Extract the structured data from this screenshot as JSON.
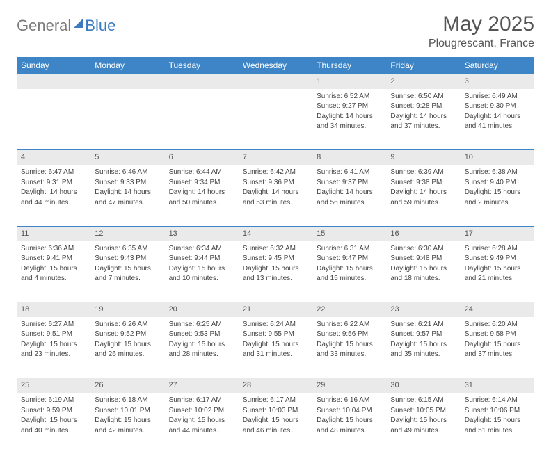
{
  "logo": {
    "general": "General",
    "blue": "Blue"
  },
  "title": "May 2025",
  "location": "Plougrescant, France",
  "colors": {
    "header_bg": "#3d85c6",
    "header_fg": "#ffffff",
    "daynum_bg": "#eaeaea",
    "border": "#3d85c6",
    "text": "#444444",
    "logo_gray": "#7a7a7a",
    "logo_blue": "#3a7bbf"
  },
  "weekdays": [
    "Sunday",
    "Monday",
    "Tuesday",
    "Wednesday",
    "Thursday",
    "Friday",
    "Saturday"
  ],
  "weeks": [
    {
      "nums": [
        "",
        "",
        "",
        "",
        "1",
        "2",
        "3"
      ],
      "cells": [
        null,
        null,
        null,
        null,
        {
          "sunrise": "Sunrise: 6:52 AM",
          "sunset": "Sunset: 9:27 PM",
          "day1": "Daylight: 14 hours",
          "day2": "and 34 minutes."
        },
        {
          "sunrise": "Sunrise: 6:50 AM",
          "sunset": "Sunset: 9:28 PM",
          "day1": "Daylight: 14 hours",
          "day2": "and 37 minutes."
        },
        {
          "sunrise": "Sunrise: 6:49 AM",
          "sunset": "Sunset: 9:30 PM",
          "day1": "Daylight: 14 hours",
          "day2": "and 41 minutes."
        }
      ]
    },
    {
      "nums": [
        "4",
        "5",
        "6",
        "7",
        "8",
        "9",
        "10"
      ],
      "cells": [
        {
          "sunrise": "Sunrise: 6:47 AM",
          "sunset": "Sunset: 9:31 PM",
          "day1": "Daylight: 14 hours",
          "day2": "and 44 minutes."
        },
        {
          "sunrise": "Sunrise: 6:46 AM",
          "sunset": "Sunset: 9:33 PM",
          "day1": "Daylight: 14 hours",
          "day2": "and 47 minutes."
        },
        {
          "sunrise": "Sunrise: 6:44 AM",
          "sunset": "Sunset: 9:34 PM",
          "day1": "Daylight: 14 hours",
          "day2": "and 50 minutes."
        },
        {
          "sunrise": "Sunrise: 6:42 AM",
          "sunset": "Sunset: 9:36 PM",
          "day1": "Daylight: 14 hours",
          "day2": "and 53 minutes."
        },
        {
          "sunrise": "Sunrise: 6:41 AM",
          "sunset": "Sunset: 9:37 PM",
          "day1": "Daylight: 14 hours",
          "day2": "and 56 minutes."
        },
        {
          "sunrise": "Sunrise: 6:39 AM",
          "sunset": "Sunset: 9:38 PM",
          "day1": "Daylight: 14 hours",
          "day2": "and 59 minutes."
        },
        {
          "sunrise": "Sunrise: 6:38 AM",
          "sunset": "Sunset: 9:40 PM",
          "day1": "Daylight: 15 hours",
          "day2": "and 2 minutes."
        }
      ]
    },
    {
      "nums": [
        "11",
        "12",
        "13",
        "14",
        "15",
        "16",
        "17"
      ],
      "cells": [
        {
          "sunrise": "Sunrise: 6:36 AM",
          "sunset": "Sunset: 9:41 PM",
          "day1": "Daylight: 15 hours",
          "day2": "and 4 minutes."
        },
        {
          "sunrise": "Sunrise: 6:35 AM",
          "sunset": "Sunset: 9:43 PM",
          "day1": "Daylight: 15 hours",
          "day2": "and 7 minutes."
        },
        {
          "sunrise": "Sunrise: 6:34 AM",
          "sunset": "Sunset: 9:44 PM",
          "day1": "Daylight: 15 hours",
          "day2": "and 10 minutes."
        },
        {
          "sunrise": "Sunrise: 6:32 AM",
          "sunset": "Sunset: 9:45 PM",
          "day1": "Daylight: 15 hours",
          "day2": "and 13 minutes."
        },
        {
          "sunrise": "Sunrise: 6:31 AM",
          "sunset": "Sunset: 9:47 PM",
          "day1": "Daylight: 15 hours",
          "day2": "and 15 minutes."
        },
        {
          "sunrise": "Sunrise: 6:30 AM",
          "sunset": "Sunset: 9:48 PM",
          "day1": "Daylight: 15 hours",
          "day2": "and 18 minutes."
        },
        {
          "sunrise": "Sunrise: 6:28 AM",
          "sunset": "Sunset: 9:49 PM",
          "day1": "Daylight: 15 hours",
          "day2": "and 21 minutes."
        }
      ]
    },
    {
      "nums": [
        "18",
        "19",
        "20",
        "21",
        "22",
        "23",
        "24"
      ],
      "cells": [
        {
          "sunrise": "Sunrise: 6:27 AM",
          "sunset": "Sunset: 9:51 PM",
          "day1": "Daylight: 15 hours",
          "day2": "and 23 minutes."
        },
        {
          "sunrise": "Sunrise: 6:26 AM",
          "sunset": "Sunset: 9:52 PM",
          "day1": "Daylight: 15 hours",
          "day2": "and 26 minutes."
        },
        {
          "sunrise": "Sunrise: 6:25 AM",
          "sunset": "Sunset: 9:53 PM",
          "day1": "Daylight: 15 hours",
          "day2": "and 28 minutes."
        },
        {
          "sunrise": "Sunrise: 6:24 AM",
          "sunset": "Sunset: 9:55 PM",
          "day1": "Daylight: 15 hours",
          "day2": "and 31 minutes."
        },
        {
          "sunrise": "Sunrise: 6:22 AM",
          "sunset": "Sunset: 9:56 PM",
          "day1": "Daylight: 15 hours",
          "day2": "and 33 minutes."
        },
        {
          "sunrise": "Sunrise: 6:21 AM",
          "sunset": "Sunset: 9:57 PM",
          "day1": "Daylight: 15 hours",
          "day2": "and 35 minutes."
        },
        {
          "sunrise": "Sunrise: 6:20 AM",
          "sunset": "Sunset: 9:58 PM",
          "day1": "Daylight: 15 hours",
          "day2": "and 37 minutes."
        }
      ]
    },
    {
      "nums": [
        "25",
        "26",
        "27",
        "28",
        "29",
        "30",
        "31"
      ],
      "cells": [
        {
          "sunrise": "Sunrise: 6:19 AM",
          "sunset": "Sunset: 9:59 PM",
          "day1": "Daylight: 15 hours",
          "day2": "and 40 minutes."
        },
        {
          "sunrise": "Sunrise: 6:18 AM",
          "sunset": "Sunset: 10:01 PM",
          "day1": "Daylight: 15 hours",
          "day2": "and 42 minutes."
        },
        {
          "sunrise": "Sunrise: 6:17 AM",
          "sunset": "Sunset: 10:02 PM",
          "day1": "Daylight: 15 hours",
          "day2": "and 44 minutes."
        },
        {
          "sunrise": "Sunrise: 6:17 AM",
          "sunset": "Sunset: 10:03 PM",
          "day1": "Daylight: 15 hours",
          "day2": "and 46 minutes."
        },
        {
          "sunrise": "Sunrise: 6:16 AM",
          "sunset": "Sunset: 10:04 PM",
          "day1": "Daylight: 15 hours",
          "day2": "and 48 minutes."
        },
        {
          "sunrise": "Sunrise: 6:15 AM",
          "sunset": "Sunset: 10:05 PM",
          "day1": "Daylight: 15 hours",
          "day2": "and 49 minutes."
        },
        {
          "sunrise": "Sunrise: 6:14 AM",
          "sunset": "Sunset: 10:06 PM",
          "day1": "Daylight: 15 hours",
          "day2": "and 51 minutes."
        }
      ]
    }
  ]
}
